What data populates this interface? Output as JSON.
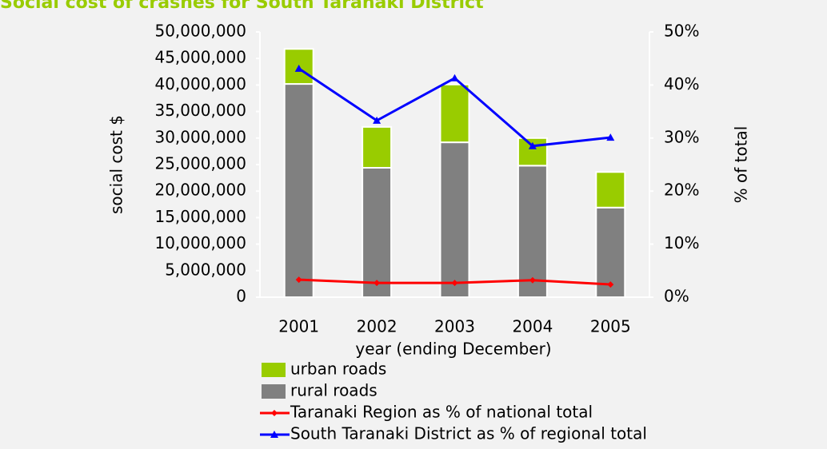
{
  "chart_data": {
    "type": "bar",
    "title": "Social cost of crashes for South Taranaki District",
    "ylabel": "social cost $",
    "y2label": "% of total",
    "xlabel": "year (ending December)",
    "categories": [
      "2001",
      "2002",
      "2003",
      "2004",
      "2005"
    ],
    "stacked": true,
    "series": [
      {
        "name": "urban roads",
        "color": "#99cc00",
        "type": "bar",
        "stack_order": 1,
        "values": [
          6600000,
          7700000,
          10900000,
          5200000,
          6700000
        ]
      },
      {
        "name": "rural roads",
        "color": "#808080",
        "type": "bar",
        "stack_order": 0,
        "values": [
          40200000,
          24400000,
          29200000,
          24800000,
          16900000
        ]
      },
      {
        "name": "Taranaki Region as % of national total",
        "color": "#ff0000",
        "type": "line",
        "marker": "diamond",
        "axis": "y2",
        "values": [
          3.3,
          2.7,
          2.7,
          3.2,
          2.4
        ]
      },
      {
        "name": "South Taranaki District as % of regional total",
        "color": "#0000ff",
        "type": "line",
        "marker": "triangle",
        "axis": "y2",
        "values": [
          43.1,
          33.3,
          41.3,
          28.5,
          30.1
        ]
      }
    ],
    "ylim": [
      0,
      50000000
    ],
    "yticks": [
      0,
      {
        "value": 5000000,
        "label": "5,000,000"
      },
      {
        "value": 10000000,
        "label": "10,000,000"
      },
      {
        "value": 15000000,
        "label": "15,000,000"
      },
      {
        "value": 20000000,
        "label": "20,000,000"
      },
      {
        "value": 25000000,
        "label": "25,000,000"
      },
      {
        "value": 30000000,
        "label": "30,000,000"
      },
      {
        "value": 35000000,
        "label": "35,000,000"
      },
      {
        "value": 40000000,
        "label": "40,000,000"
      },
      {
        "value": 45000000,
        "label": "45,000,000"
      },
      {
        "value": 50000000,
        "label": "50,000,000"
      }
    ],
    "y2lim": [
      0,
      50
    ],
    "y2ticks": [
      {
        "value": 0,
        "label": "0%"
      },
      {
        "value": 10,
        "label": "10%"
      },
      {
        "value": 20,
        "label": "20%"
      },
      {
        "value": 30,
        "label": "30%"
      },
      {
        "value": 40,
        "label": "40%"
      },
      {
        "value": 50,
        "label": "50%"
      }
    ],
    "legend": "bottom-left"
  }
}
